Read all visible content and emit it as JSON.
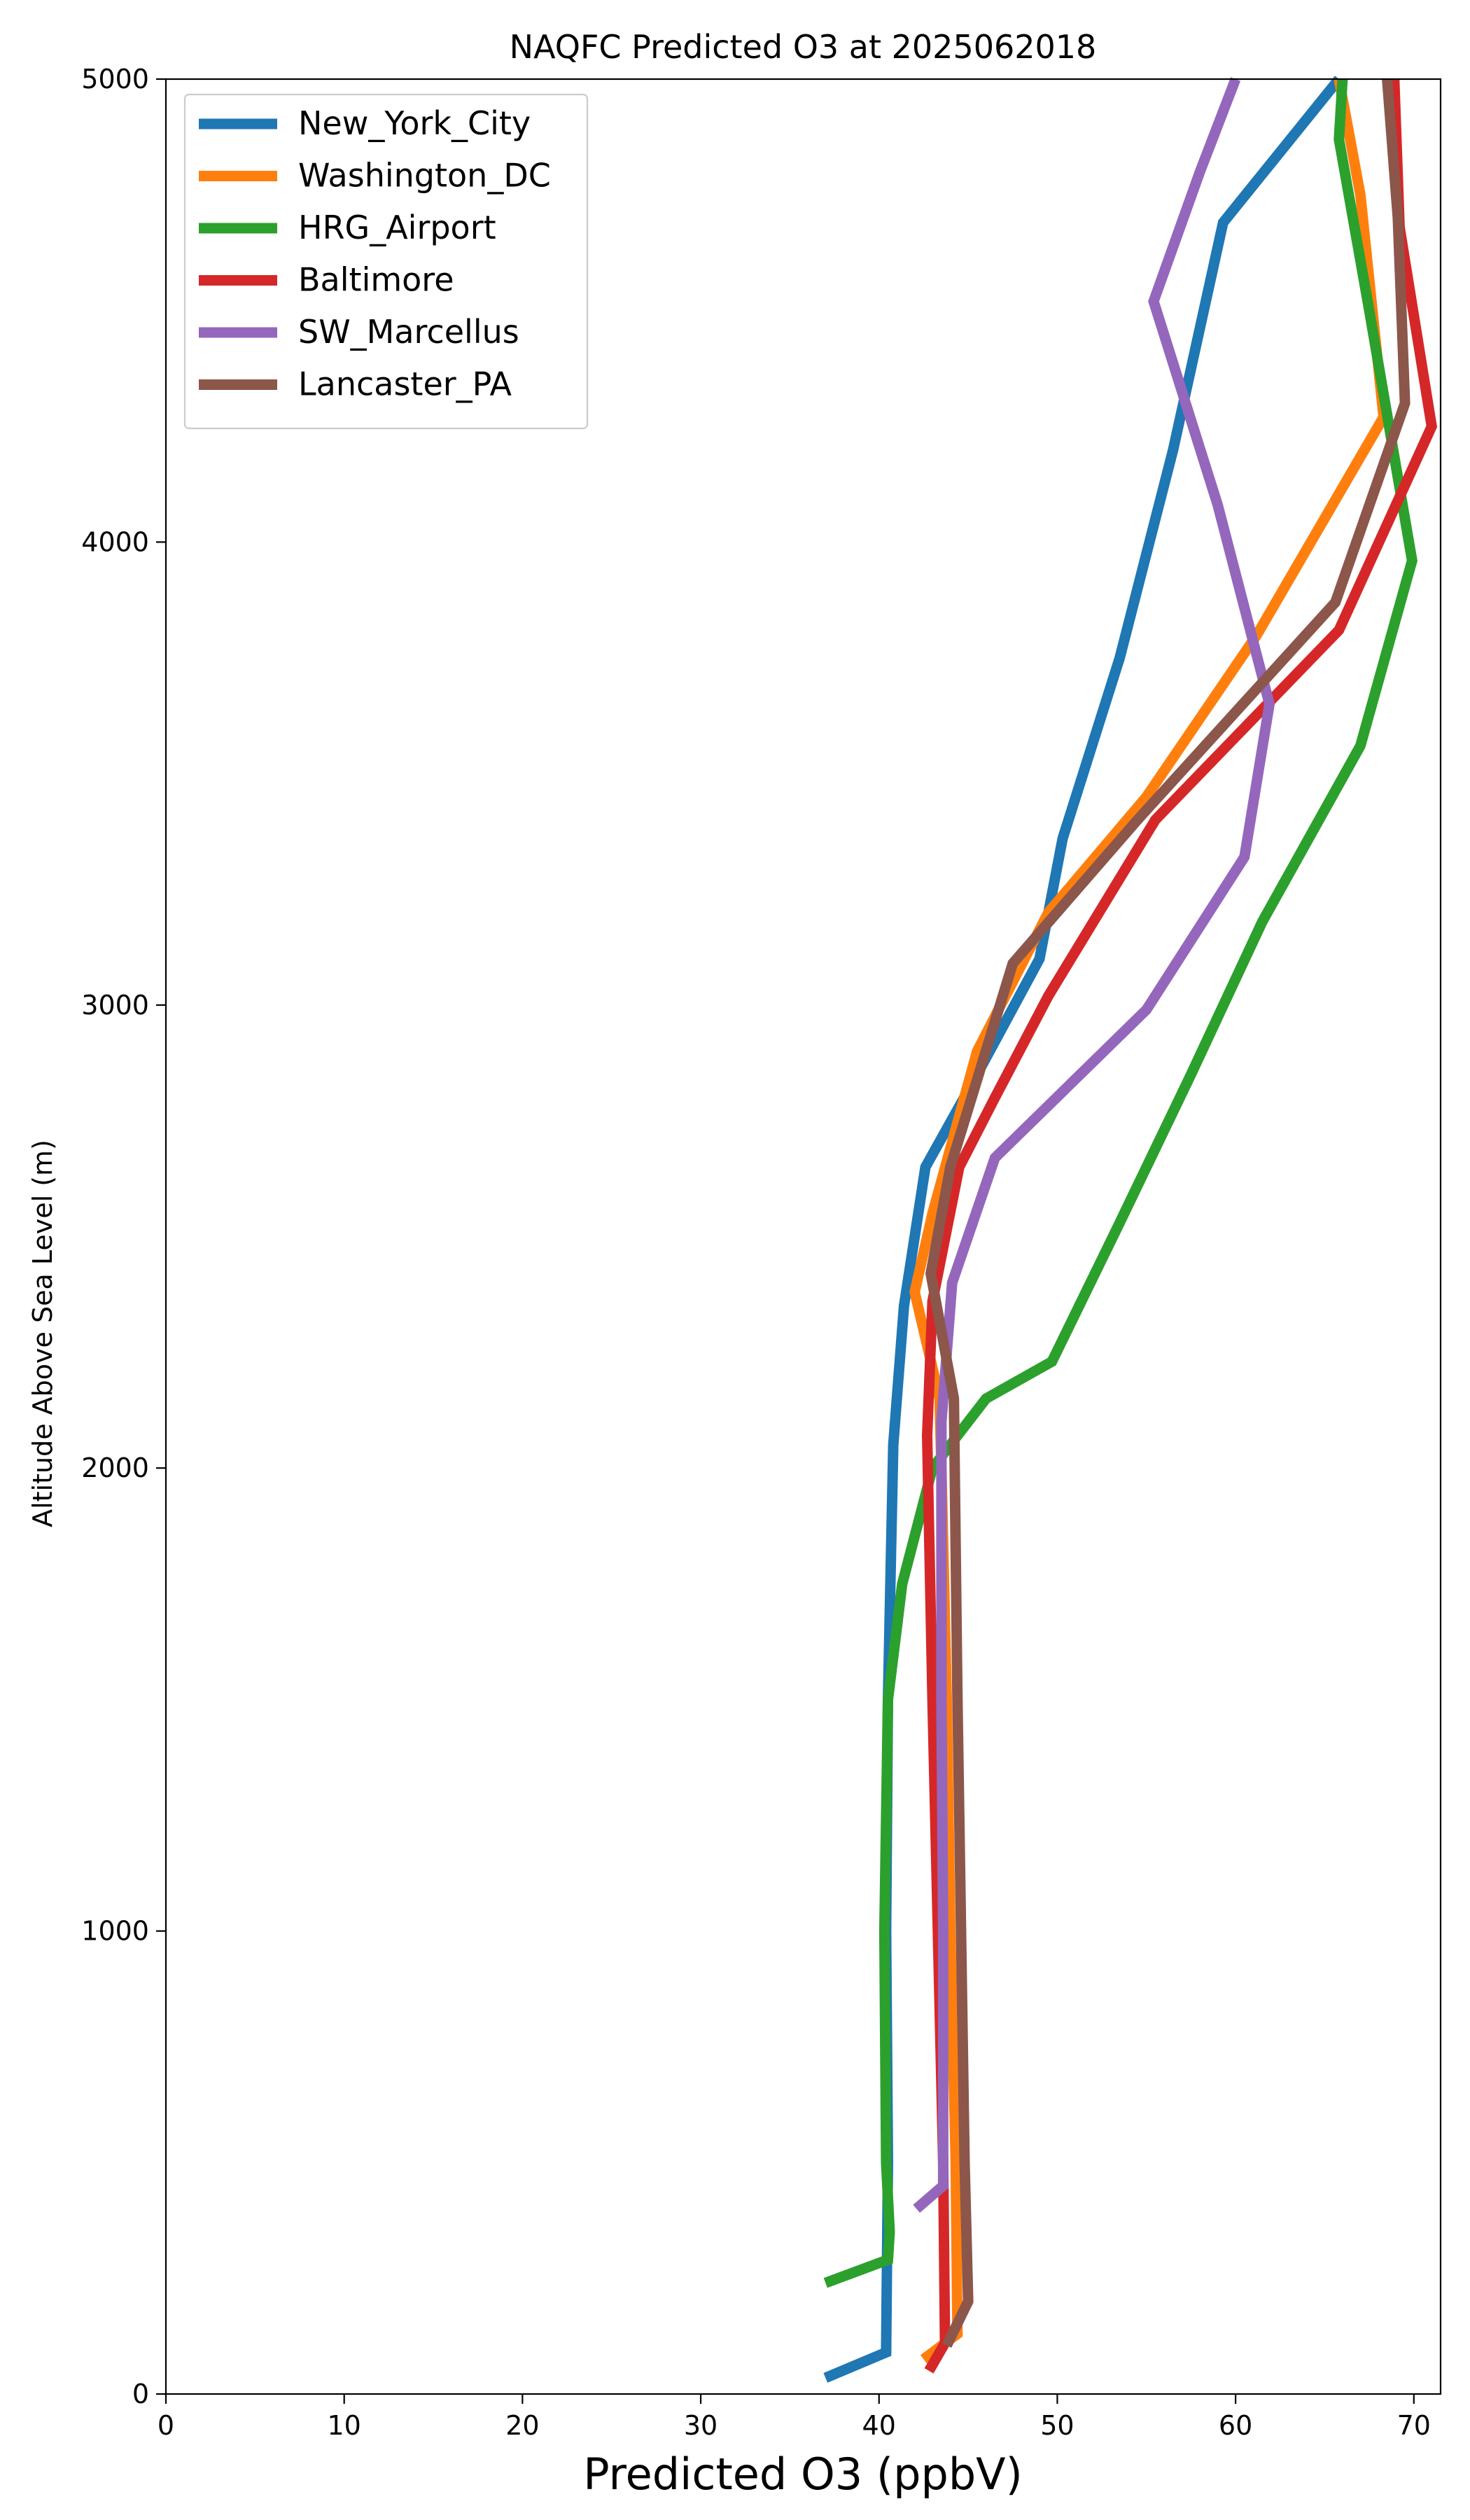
{
  "chart_data": {
    "type": "line",
    "title": "NAQFC Predicted O3 at 2025062018",
    "xlabel": "Predicted O3 (ppbV)",
    "ylabel": "Altitude Above Sea Level (m)",
    "xlim": [
      0,
      71.5
    ],
    "ylim": [
      0,
      5000
    ],
    "xticks": [
      0,
      10,
      20,
      30,
      40,
      50,
      60,
      70
    ],
    "yticks": [
      0,
      1000,
      2000,
      3000,
      4000,
      5000
    ],
    "grid": false,
    "legend_position": "upper left",
    "series": [
      {
        "name": "New_York_City",
        "color": "#1f77b4",
        "points": [
          [
            37.0,
            35
          ],
          [
            40.4,
            90
          ],
          [
            40.5,
            500
          ],
          [
            40.4,
            1000
          ],
          [
            40.5,
            1500
          ],
          [
            40.8,
            2050
          ],
          [
            41.4,
            2350
          ],
          [
            42.6,
            2650
          ],
          [
            45.5,
            2850
          ],
          [
            49.0,
            3100
          ],
          [
            50.3,
            3360
          ],
          [
            53.5,
            3750
          ],
          [
            56.5,
            4200
          ],
          [
            59.3,
            4690
          ],
          [
            65.8,
            5000
          ]
        ]
      },
      {
        "name": "Washington_DC",
        "color": "#ff7f0e",
        "points": [
          [
            42.5,
            75
          ],
          [
            44.4,
            130
          ],
          [
            44.3,
            500
          ],
          [
            44.0,
            1000
          ],
          [
            43.8,
            1500
          ],
          [
            43.5,
            2000
          ],
          [
            43.4,
            2150
          ],
          [
            42.0,
            2380
          ],
          [
            43.0,
            2550
          ],
          [
            45.5,
            2900
          ],
          [
            49.5,
            3200
          ],
          [
            55.0,
            3450
          ],
          [
            61.2,
            3800
          ],
          [
            68.3,
            4270
          ],
          [
            67.0,
            4750
          ],
          [
            65.8,
            5000
          ]
        ]
      },
      {
        "name": "HRG_Airport",
        "color": "#2ca02c",
        "points": [
          [
            37.0,
            240
          ],
          [
            40.5,
            290
          ],
          [
            40.6,
            350
          ],
          [
            40.4,
            500
          ],
          [
            40.3,
            1000
          ],
          [
            40.5,
            1500
          ],
          [
            41.3,
            1750
          ],
          [
            43.0,
            2000
          ],
          [
            46.0,
            2150
          ],
          [
            49.7,
            2230
          ],
          [
            53.5,
            2530
          ],
          [
            57.5,
            2850
          ],
          [
            61.5,
            3180
          ],
          [
            67.0,
            3560
          ],
          [
            69.9,
            3960
          ],
          [
            67.5,
            4500
          ],
          [
            65.8,
            4870
          ],
          [
            66.0,
            5000
          ]
        ]
      },
      {
        "name": "Baltimore",
        "color": "#d62728",
        "points": [
          [
            42.8,
            50
          ],
          [
            43.7,
            110
          ],
          [
            43.6,
            500
          ],
          [
            43.3,
            1000
          ],
          [
            43.0,
            1500
          ],
          [
            42.7,
            2070
          ],
          [
            43.0,
            2360
          ],
          [
            44.5,
            2650
          ],
          [
            46.5,
            2800
          ],
          [
            49.5,
            3020
          ],
          [
            55.5,
            3400
          ],
          [
            65.8,
            3810
          ],
          [
            71.0,
            4250
          ],
          [
            69.2,
            4680
          ],
          [
            68.9,
            5000
          ]
        ]
      },
      {
        "name": "SW_Marcellus",
        "color": "#9467bd",
        "points": [
          [
            42.1,
            400
          ],
          [
            43.6,
            450
          ],
          [
            43.6,
            1000
          ],
          [
            43.5,
            1500
          ],
          [
            43.5,
            2100
          ],
          [
            44.1,
            2400
          ],
          [
            46.5,
            2670
          ],
          [
            55.0,
            2990
          ],
          [
            60.5,
            3320
          ],
          [
            61.9,
            3650
          ],
          [
            59.0,
            4080
          ],
          [
            55.4,
            4520
          ],
          [
            58.0,
            4800
          ],
          [
            60.0,
            5000
          ]
        ]
      },
      {
        "name": "Lancaster_PA",
        "color": "#8c564b",
        "points": [
          [
            43.8,
            105
          ],
          [
            45.0,
            200
          ],
          [
            44.8,
            500
          ],
          [
            44.6,
            1000
          ],
          [
            44.4,
            1500
          ],
          [
            44.2,
            2150
          ],
          [
            42.9,
            2420
          ],
          [
            44.0,
            2650
          ],
          [
            47.5,
            3090
          ],
          [
            54.5,
            3400
          ],
          [
            65.6,
            3870
          ],
          [
            69.5,
            4300
          ],
          [
            69.1,
            4700
          ],
          [
            68.5,
            5000
          ]
        ]
      }
    ]
  }
}
